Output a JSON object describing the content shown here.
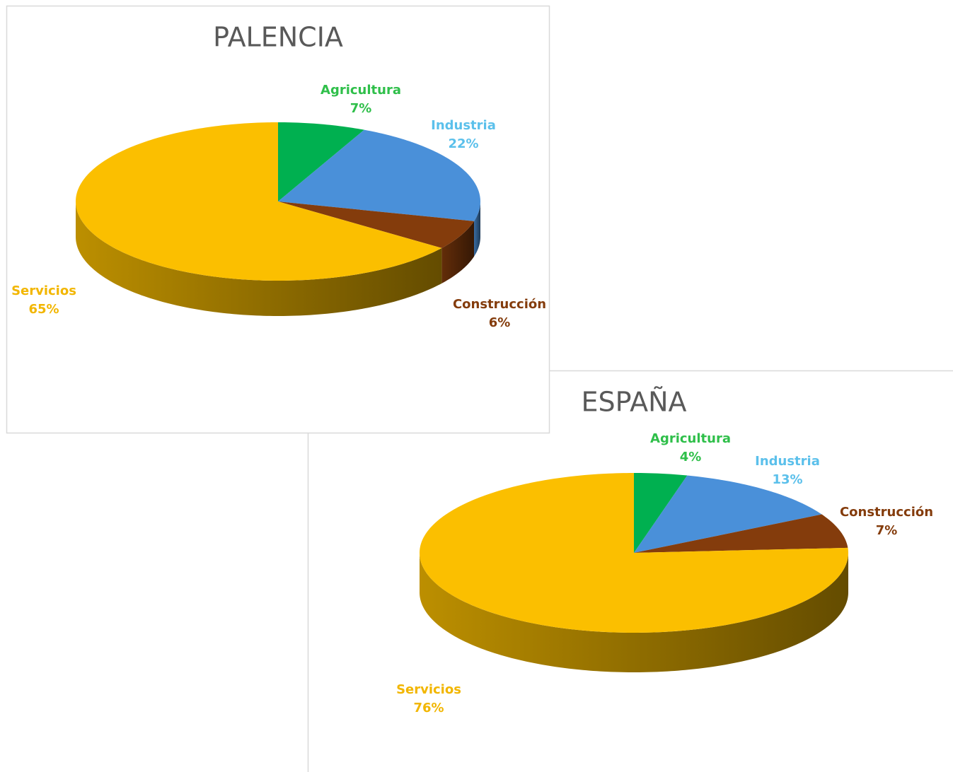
{
  "chart_data": [
    {
      "type": "pie",
      "title": "PALENCIA",
      "categories": [
        "Agricultura",
        "Industria",
        "Construcción",
        "Servicios"
      ],
      "values": [
        7,
        22,
        6,
        65
      ],
      "value_labels": [
        "7%",
        "22%",
        "6%",
        "65%"
      ],
      "colors": [
        "#00b050",
        "#4a90d9",
        "#843c0c",
        "#fbbf00"
      ]
    },
    {
      "type": "pie",
      "title": "ESPAÑA",
      "categories": [
        "Agricultura",
        "Industria",
        "Construcción",
        "Servicios"
      ],
      "values": [
        4,
        13,
        7,
        76
      ],
      "value_labels": [
        "4%",
        "13%",
        "7%",
        "76%"
      ],
      "colors": [
        "#00b050",
        "#4a90d9",
        "#843c0c",
        "#fbbf00"
      ]
    }
  ]
}
